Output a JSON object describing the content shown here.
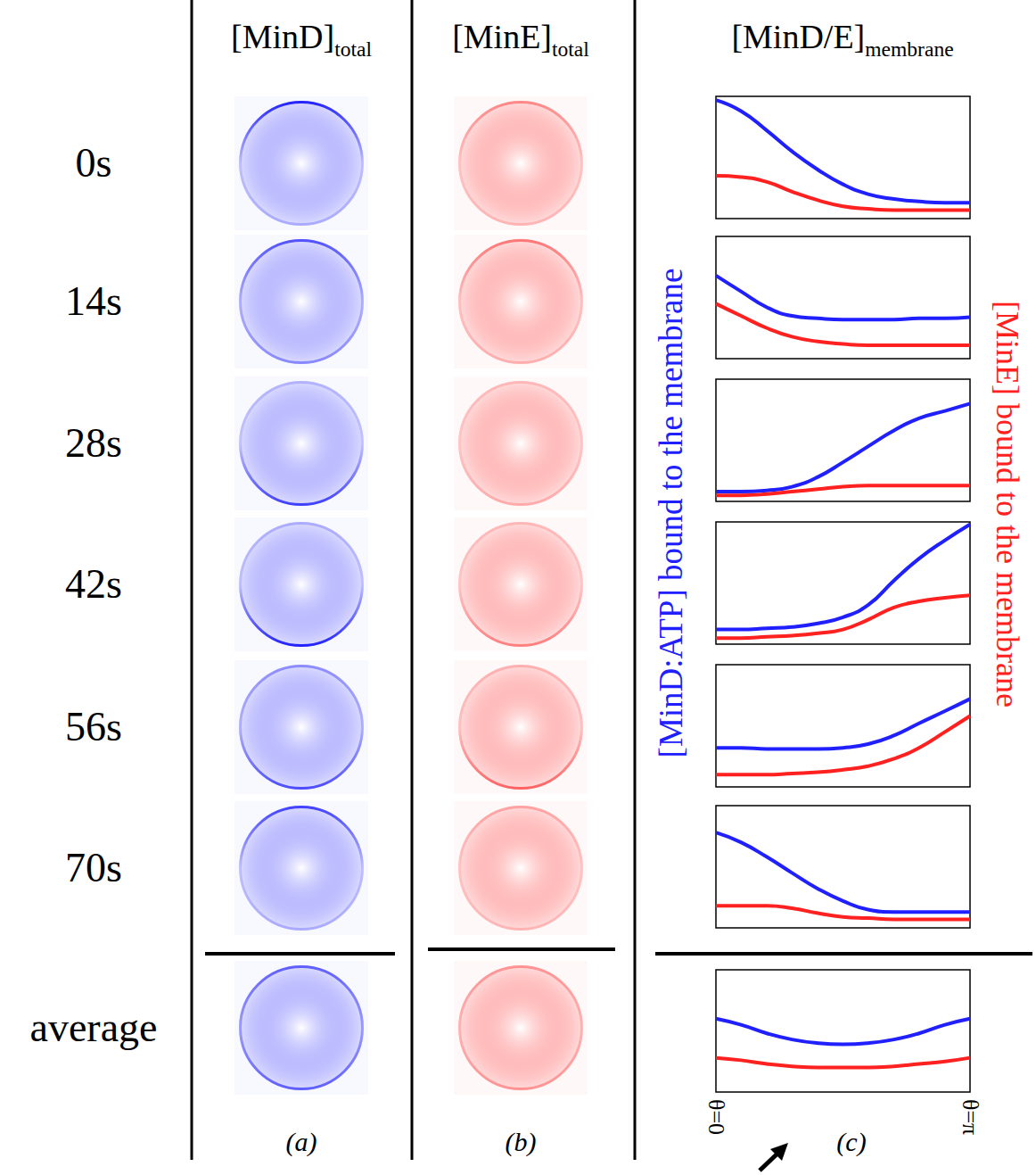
{
  "column_heads": [
    {
      "main": "[MinD]",
      "sub": "total"
    },
    {
      "main": "[MinE]",
      "sub": "total"
    },
    {
      "main": "[MinD/E]",
      "sub": "membrane"
    }
  ],
  "row_labels": [
    "0s",
    "14s",
    "28s",
    "42s",
    "56s",
    "70s",
    "average"
  ],
  "panel_letters": [
    "(a)",
    "(b)",
    "(c)"
  ],
  "side_labels": {
    "left": {
      "text": "[MinD:ATP] bound to the membrane",
      "color": "#2020ff"
    },
    "right": {
      "text": "[MinE] bound to the membrane",
      "color": "#ff2020"
    }
  },
  "chart_data": [
    {
      "type": "line",
      "x": [
        0,
        0.31,
        0.63,
        0.94,
        1.26,
        1.57,
        1.88,
        2.2,
        2.51,
        2.83,
        3.14
      ],
      "xlim": [
        0,
        3.14
      ],
      "ylim": [
        0,
        1
      ],
      "tick_labels": false,
      "series": [
        {
          "color": "#2020ff",
          "values": [
            0.97,
            0.88,
            0.72,
            0.55,
            0.4,
            0.28,
            0.2,
            0.16,
            0.14,
            0.13,
            0.13
          ]
        },
        {
          "color": "#ff2020",
          "values": [
            0.35,
            0.34,
            0.3,
            0.22,
            0.15,
            0.1,
            0.08,
            0.07,
            0.07,
            0.07,
            0.07
          ]
        }
      ]
    },
    {
      "type": "line",
      "x": [
        0,
        0.31,
        0.63,
        0.94,
        1.26,
        1.57,
        1.88,
        2.2,
        2.51,
        2.83,
        3.14
      ],
      "xlim": [
        0,
        3.14
      ],
      "ylim": [
        0,
        1
      ],
      "tick_labels": false,
      "series": [
        {
          "color": "#2020ff",
          "values": [
            0.68,
            0.55,
            0.42,
            0.35,
            0.33,
            0.32,
            0.32,
            0.32,
            0.33,
            0.33,
            0.34
          ]
        },
        {
          "color": "#ff2020",
          "values": [
            0.45,
            0.35,
            0.25,
            0.18,
            0.14,
            0.12,
            0.11,
            0.11,
            0.11,
            0.11,
            0.11
          ]
        }
      ]
    },
    {
      "type": "line",
      "x": [
        0,
        0.31,
        0.63,
        0.94,
        1.26,
        1.57,
        1.88,
        2.2,
        2.51,
        2.83,
        3.14
      ],
      "xlim": [
        0,
        3.14
      ],
      "ylim": [
        0,
        1
      ],
      "tick_labels": false,
      "series": [
        {
          "color": "#2020ff",
          "values": [
            0.08,
            0.08,
            0.09,
            0.12,
            0.2,
            0.32,
            0.45,
            0.58,
            0.68,
            0.74,
            0.8
          ]
        },
        {
          "color": "#ff2020",
          "values": [
            0.05,
            0.05,
            0.06,
            0.08,
            0.1,
            0.12,
            0.13,
            0.13,
            0.13,
            0.13,
            0.13
          ]
        }
      ]
    },
    {
      "type": "line",
      "x": [
        0,
        0.31,
        0.63,
        0.94,
        1.26,
        1.57,
        1.88,
        2.2,
        2.51,
        2.83,
        3.14
      ],
      "xlim": [
        0,
        3.14
      ],
      "ylim": [
        0,
        1
      ],
      "tick_labels": false,
      "series": [
        {
          "color": "#2020ff",
          "values": [
            0.12,
            0.12,
            0.13,
            0.14,
            0.17,
            0.22,
            0.32,
            0.52,
            0.7,
            0.85,
            0.98
          ]
        },
        {
          "color": "#ff2020",
          "values": [
            0.05,
            0.05,
            0.06,
            0.07,
            0.09,
            0.12,
            0.2,
            0.3,
            0.35,
            0.38,
            0.4
          ]
        }
      ]
    },
    {
      "type": "line",
      "x": [
        0,
        0.31,
        0.63,
        0.94,
        1.26,
        1.57,
        1.88,
        2.2,
        2.51,
        2.83,
        3.14
      ],
      "xlim": [
        0,
        3.14
      ],
      "ylim": [
        0,
        1
      ],
      "tick_labels": false,
      "series": [
        {
          "color": "#2020ff",
          "values": [
            0.32,
            0.32,
            0.31,
            0.31,
            0.31,
            0.32,
            0.35,
            0.42,
            0.52,
            0.62,
            0.72
          ]
        },
        {
          "color": "#ff2020",
          "values": [
            0.1,
            0.1,
            0.1,
            0.11,
            0.12,
            0.14,
            0.17,
            0.23,
            0.32,
            0.45,
            0.58
          ]
        }
      ]
    },
    {
      "type": "line",
      "x": [
        0,
        0.31,
        0.63,
        0.94,
        1.26,
        1.57,
        1.88,
        2.2,
        2.51,
        2.83,
        3.14
      ],
      "xlim": [
        0,
        3.14
      ],
      "ylim": [
        0,
        1
      ],
      "tick_labels": false,
      "series": [
        {
          "color": "#2020ff",
          "values": [
            0.78,
            0.7,
            0.58,
            0.45,
            0.32,
            0.22,
            0.15,
            0.13,
            0.13,
            0.13,
            0.13
          ]
        },
        {
          "color": "#ff2020",
          "values": [
            0.18,
            0.18,
            0.18,
            0.16,
            0.12,
            0.09,
            0.08,
            0.07,
            0.07,
            0.07,
            0.07
          ]
        }
      ]
    },
    {
      "type": "line",
      "x": [
        0,
        0.31,
        0.63,
        0.94,
        1.26,
        1.57,
        1.88,
        2.2,
        2.51,
        2.83,
        3.14
      ],
      "xlim": [
        0,
        3.14
      ],
      "ylim": [
        0,
        1
      ],
      "tick_labels": "x",
      "xticks": [
        {
          "value": 0,
          "label": "θ=0"
        },
        {
          "value": 3.14,
          "label": "θ=π"
        }
      ],
      "series": [
        {
          "color": "#2020ff",
          "values": [
            0.6,
            0.55,
            0.48,
            0.43,
            0.4,
            0.39,
            0.4,
            0.43,
            0.48,
            0.55,
            0.6
          ]
        },
        {
          "color": "#ff2020",
          "values": [
            0.28,
            0.26,
            0.23,
            0.21,
            0.2,
            0.2,
            0.2,
            0.21,
            0.23,
            0.25,
            0.28
          ]
        }
      ]
    }
  ]
}
